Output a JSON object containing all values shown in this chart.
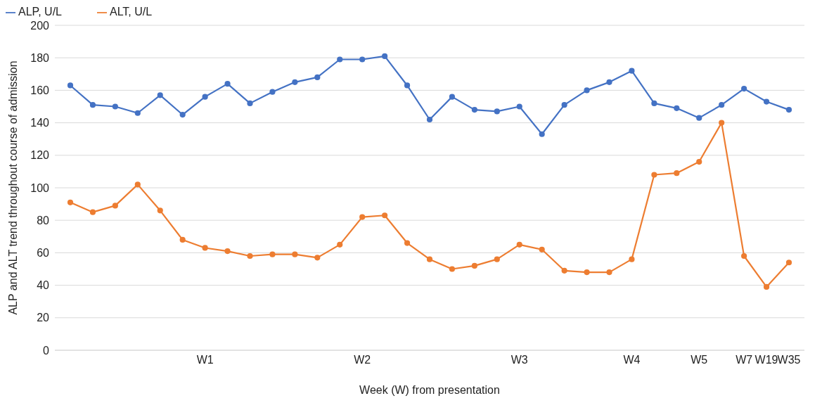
{
  "chart_data": {
    "type": "line",
    "xlabel": "Week (W) from presentation",
    "ylabel": "ALP and ALT trend throughout course of admission",
    "categories": [
      null,
      null,
      null,
      null,
      null,
      null,
      "W1",
      null,
      null,
      null,
      null,
      null,
      null,
      "W2",
      null,
      null,
      null,
      null,
      null,
      null,
      "W3",
      null,
      null,
      null,
      null,
      "W4",
      null,
      null,
      "W5",
      null,
      "W7",
      "W19",
      "W35"
    ],
    "series": [
      {
        "name": "ALP, U/L",
        "color": "#4472c4",
        "values": [
          163,
          151,
          150,
          146,
          157,
          145,
          156,
          164,
          152,
          159,
          165,
          168,
          179,
          179,
          181,
          163,
          142,
          156,
          148,
          147,
          150,
          133,
          151,
          160,
          165,
          172,
          152,
          149,
          143,
          151,
          161,
          153,
          148
        ]
      },
      {
        "name": "ALT, U/L",
        "color": "#ed7d31",
        "values": [
          91,
          85,
          89,
          102,
          86,
          68,
          63,
          61,
          58,
          59,
          59,
          57,
          65,
          82,
          83,
          66,
          56,
          50,
          52,
          56,
          65,
          62,
          49,
          48,
          48,
          56,
          108,
          109,
          116,
          140,
          58,
          39,
          54
        ]
      }
    ],
    "ylim": [
      0,
      200
    ],
    "yticks": [
      0,
      20,
      40,
      60,
      80,
      100,
      120,
      140,
      160,
      180,
      200
    ],
    "grid": "y",
    "legend": "top left",
    "marker": "circle",
    "line_style": "solid"
  }
}
